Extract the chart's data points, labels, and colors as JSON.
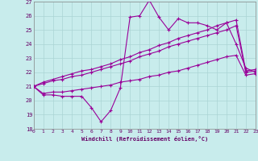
{
  "xlabel": "Windchill (Refroidissement éolien,°C)",
  "background_color": "#c8ecec",
  "grid_color": "#aad4d4",
  "line_color": "#990099",
  "xlim": [
    0,
    23
  ],
  "ylim": [
    18,
    27
  ],
  "xticks": [
    0,
    1,
    2,
    3,
    4,
    5,
    6,
    7,
    8,
    9,
    10,
    11,
    12,
    13,
    14,
    15,
    16,
    17,
    18,
    19,
    20,
    21,
    22,
    23
  ],
  "yticks": [
    18,
    19,
    20,
    21,
    22,
    23,
    24,
    25,
    26,
    27
  ],
  "series": [
    {
      "x": [
        0,
        1,
        2,
        3,
        4,
        5,
        6,
        7,
        8,
        9,
        10,
        11,
        12,
        13,
        14,
        15,
        16,
        17,
        18,
        19,
        20,
        21,
        22,
        23
      ],
      "y": [
        21.0,
        20.4,
        20.4,
        20.3,
        20.3,
        20.3,
        19.5,
        18.5,
        19.3,
        20.9,
        25.9,
        26.0,
        27.1,
        25.9,
        25.0,
        25.8,
        25.5,
        25.5,
        25.3,
        25.0,
        25.5,
        24.0,
        22.3,
        22.0
      ]
    },
    {
      "x": [
        0,
        1,
        2,
        3,
        4,
        5,
        6,
        7,
        8,
        9,
        10,
        11,
        12,
        13,
        14,
        15,
        16,
        17,
        18,
        19,
        20,
        21,
        22,
        23
      ],
      "y": [
        21.0,
        20.5,
        20.6,
        20.6,
        20.7,
        20.8,
        20.9,
        21.0,
        21.1,
        21.3,
        21.4,
        21.5,
        21.7,
        21.8,
        22.0,
        22.1,
        22.3,
        22.5,
        22.7,
        22.9,
        23.1,
        23.2,
        21.8,
        21.9
      ]
    },
    {
      "x": [
        0,
        1,
        2,
        3,
        4,
        5,
        6,
        7,
        8,
        9,
        10,
        11,
        12,
        13,
        14,
        15,
        16,
        17,
        18,
        19,
        20,
        21,
        22,
        23
      ],
      "y": [
        21.0,
        21.2,
        21.4,
        21.5,
        21.7,
        21.8,
        22.0,
        22.2,
        22.4,
        22.6,
        22.8,
        23.1,
        23.3,
        23.5,
        23.8,
        24.0,
        24.2,
        24.4,
        24.6,
        24.8,
        25.0,
        25.3,
        22.0,
        22.1
      ]
    },
    {
      "x": [
        0,
        1,
        2,
        3,
        4,
        5,
        6,
        7,
        8,
        9,
        10,
        11,
        12,
        13,
        14,
        15,
        16,
        17,
        18,
        19,
        20,
        21,
        22,
        23
      ],
      "y": [
        21.0,
        21.3,
        21.5,
        21.7,
        21.9,
        22.1,
        22.2,
        22.4,
        22.6,
        22.9,
        23.1,
        23.4,
        23.6,
        23.9,
        24.1,
        24.4,
        24.6,
        24.8,
        25.0,
        25.3,
        25.5,
        25.7,
        22.1,
        22.2
      ]
    }
  ]
}
